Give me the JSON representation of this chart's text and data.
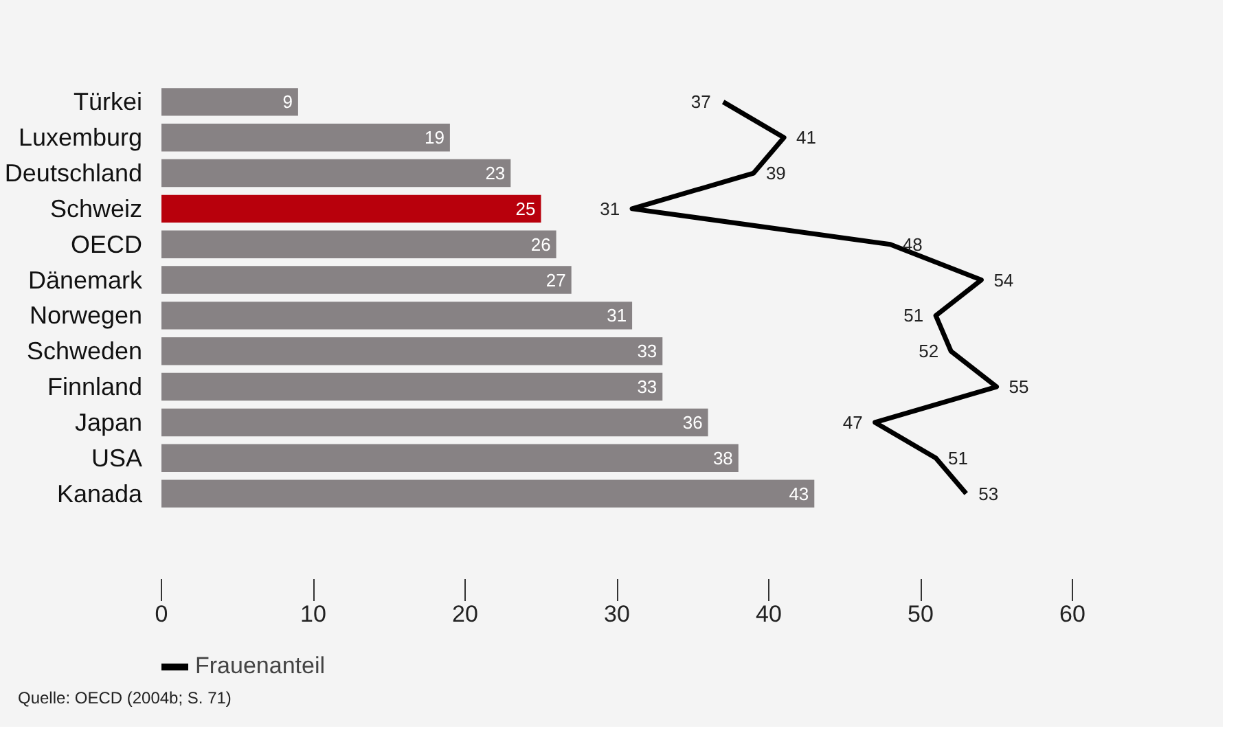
{
  "chart_data": {
    "type": "bar",
    "orientation": "horizontal",
    "categories": [
      "Türkei",
      "Luxemburg",
      "Deutschland",
      "Schweiz",
      "OECD",
      "Dänemark",
      "Norwegen",
      "Schweden",
      "Finnland",
      "Japan",
      "USA",
      "Kanada"
    ],
    "series": [
      {
        "colors": [
          "#878284",
          "#878284",
          "#878284",
          "#b8000c",
          "#878284",
          "#878284",
          "#878284",
          "#878284",
          "#878284",
          "#878284",
          "#878284",
          "#878284"
        ],
        "values": [
          9,
          19,
          23,
          25,
          26,
          27,
          31,
          33,
          33,
          36,
          38,
          43
        ]
      },
      {
        "type": "line",
        "name": "Frauenanteil",
        "color": "#000000",
        "values": [
          37,
          41,
          39,
          31,
          48,
          54,
          51,
          52,
          55,
          47,
          51,
          53
        ]
      }
    ],
    "xlim": [
      0,
      60
    ],
    "xticks": [
      0,
      10,
      20,
      30,
      40,
      50,
      60
    ],
    "data_labels": true,
    "legend": "bottom left",
    "grid": false,
    "marker": "none",
    "line_style": "solid",
    "annotations": [
      "Quelle: OECD (2004b; S. 71)"
    ]
  }
}
